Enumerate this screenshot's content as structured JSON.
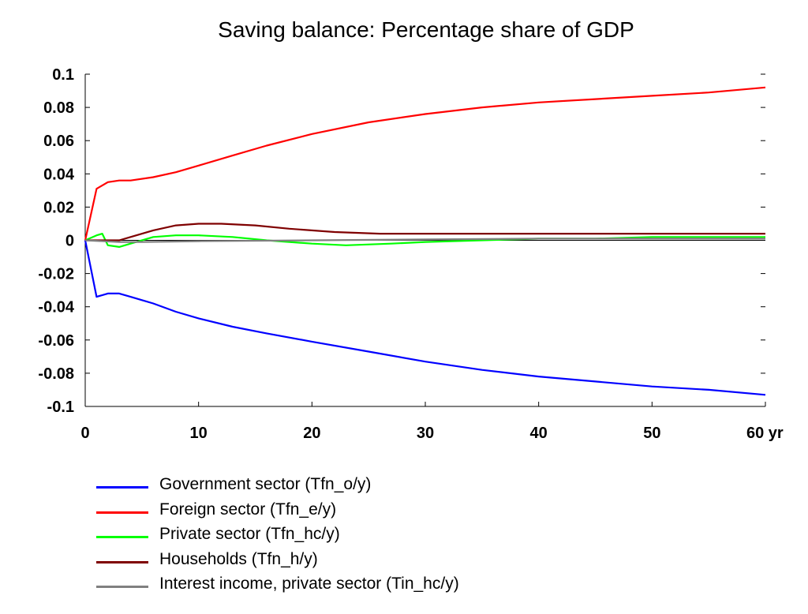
{
  "chart_data": {
    "type": "line",
    "title": "Saving balance: Percentage share of GDP",
    "xlabel": "",
    "ylabel": "",
    "xlim": [
      0,
      60
    ],
    "ylim": [
      -0.1,
      0.1
    ],
    "x_ticks": [
      "0",
      "10",
      "20",
      "30",
      "40",
      "50",
      "60 yr"
    ],
    "x_tick_values": [
      0,
      10,
      20,
      30,
      40,
      50,
      60
    ],
    "y_ticks": [
      "0.1",
      "0.08",
      "0.06",
      "0.04",
      "0.02",
      "0",
      "-0.02",
      "-0.04",
      "-0.06",
      "-0.08",
      "-0.1"
    ],
    "y_tick_values": [
      0.1,
      0.08,
      0.06,
      0.04,
      0.02,
      0,
      -0.02,
      -0.04,
      -0.06,
      -0.08,
      -0.1
    ],
    "grid": false,
    "legend_position": "bottom",
    "series": [
      {
        "name": "Government sector (Tfn_o/y)",
        "color": "#0000ff",
        "x": [
          0,
          1,
          2,
          3,
          4,
          6,
          8,
          10,
          13,
          16,
          20,
          25,
          30,
          35,
          40,
          45,
          50,
          55,
          60
        ],
        "values": [
          0,
          -0.034,
          -0.032,
          -0.032,
          -0.034,
          -0.038,
          -0.043,
          -0.047,
          -0.052,
          -0.056,
          -0.061,
          -0.067,
          -0.073,
          -0.078,
          -0.082,
          -0.085,
          -0.088,
          -0.09,
          -0.093
        ]
      },
      {
        "name": "Foreign sector (Tfn_e/y)",
        "color": "#ff0000",
        "x": [
          0,
          1,
          2,
          3,
          4,
          6,
          8,
          10,
          13,
          16,
          20,
          25,
          30,
          35,
          40,
          45,
          50,
          55,
          60
        ],
        "values": [
          0,
          0.031,
          0.035,
          0.036,
          0.036,
          0.038,
          0.041,
          0.045,
          0.051,
          0.057,
          0.064,
          0.071,
          0.076,
          0.08,
          0.083,
          0.085,
          0.087,
          0.089,
          0.092
        ]
      },
      {
        "name": "Private sector (Tfn_hc/y)",
        "color": "#00ff00",
        "x": [
          0,
          1,
          1.5,
          2,
          3,
          4,
          6,
          8,
          10,
          13,
          16,
          20,
          23,
          27,
          30,
          35,
          40,
          45,
          50,
          55,
          60
        ],
        "values": [
          0,
          0.003,
          0.004,
          -0.003,
          -0.004,
          -0.002,
          0.002,
          0.003,
          0.003,
          0.002,
          0,
          -0.002,
          -0.003,
          -0.002,
          -0.001,
          0,
          0.001,
          0.001,
          0.002,
          0.002,
          0.002
        ]
      },
      {
        "name": "Households (Tfn_h/y)",
        "color": "#7f0000",
        "x": [
          0,
          1,
          2,
          3,
          4,
          6,
          8,
          10,
          12,
          15,
          18,
          22,
          26,
          30,
          35,
          40,
          45,
          50,
          55,
          60
        ],
        "values": [
          0,
          0,
          0,
          0,
          0.002,
          0.006,
          0.009,
          0.01,
          0.01,
          0.009,
          0.007,
          0.005,
          0.004,
          0.004,
          0.004,
          0.004,
          0.004,
          0.004,
          0.004,
          0.004
        ]
      },
      {
        "name": "Interest income, private sector (Tin_hc/y)",
        "color": "#808080",
        "x": [
          0,
          3,
          5,
          10,
          20,
          30,
          40,
          50,
          60
        ],
        "values": [
          0,
          -0.001,
          -0.001,
          -0.0005,
          0,
          0.0005,
          0.001,
          0.001,
          0.001
        ]
      }
    ]
  }
}
